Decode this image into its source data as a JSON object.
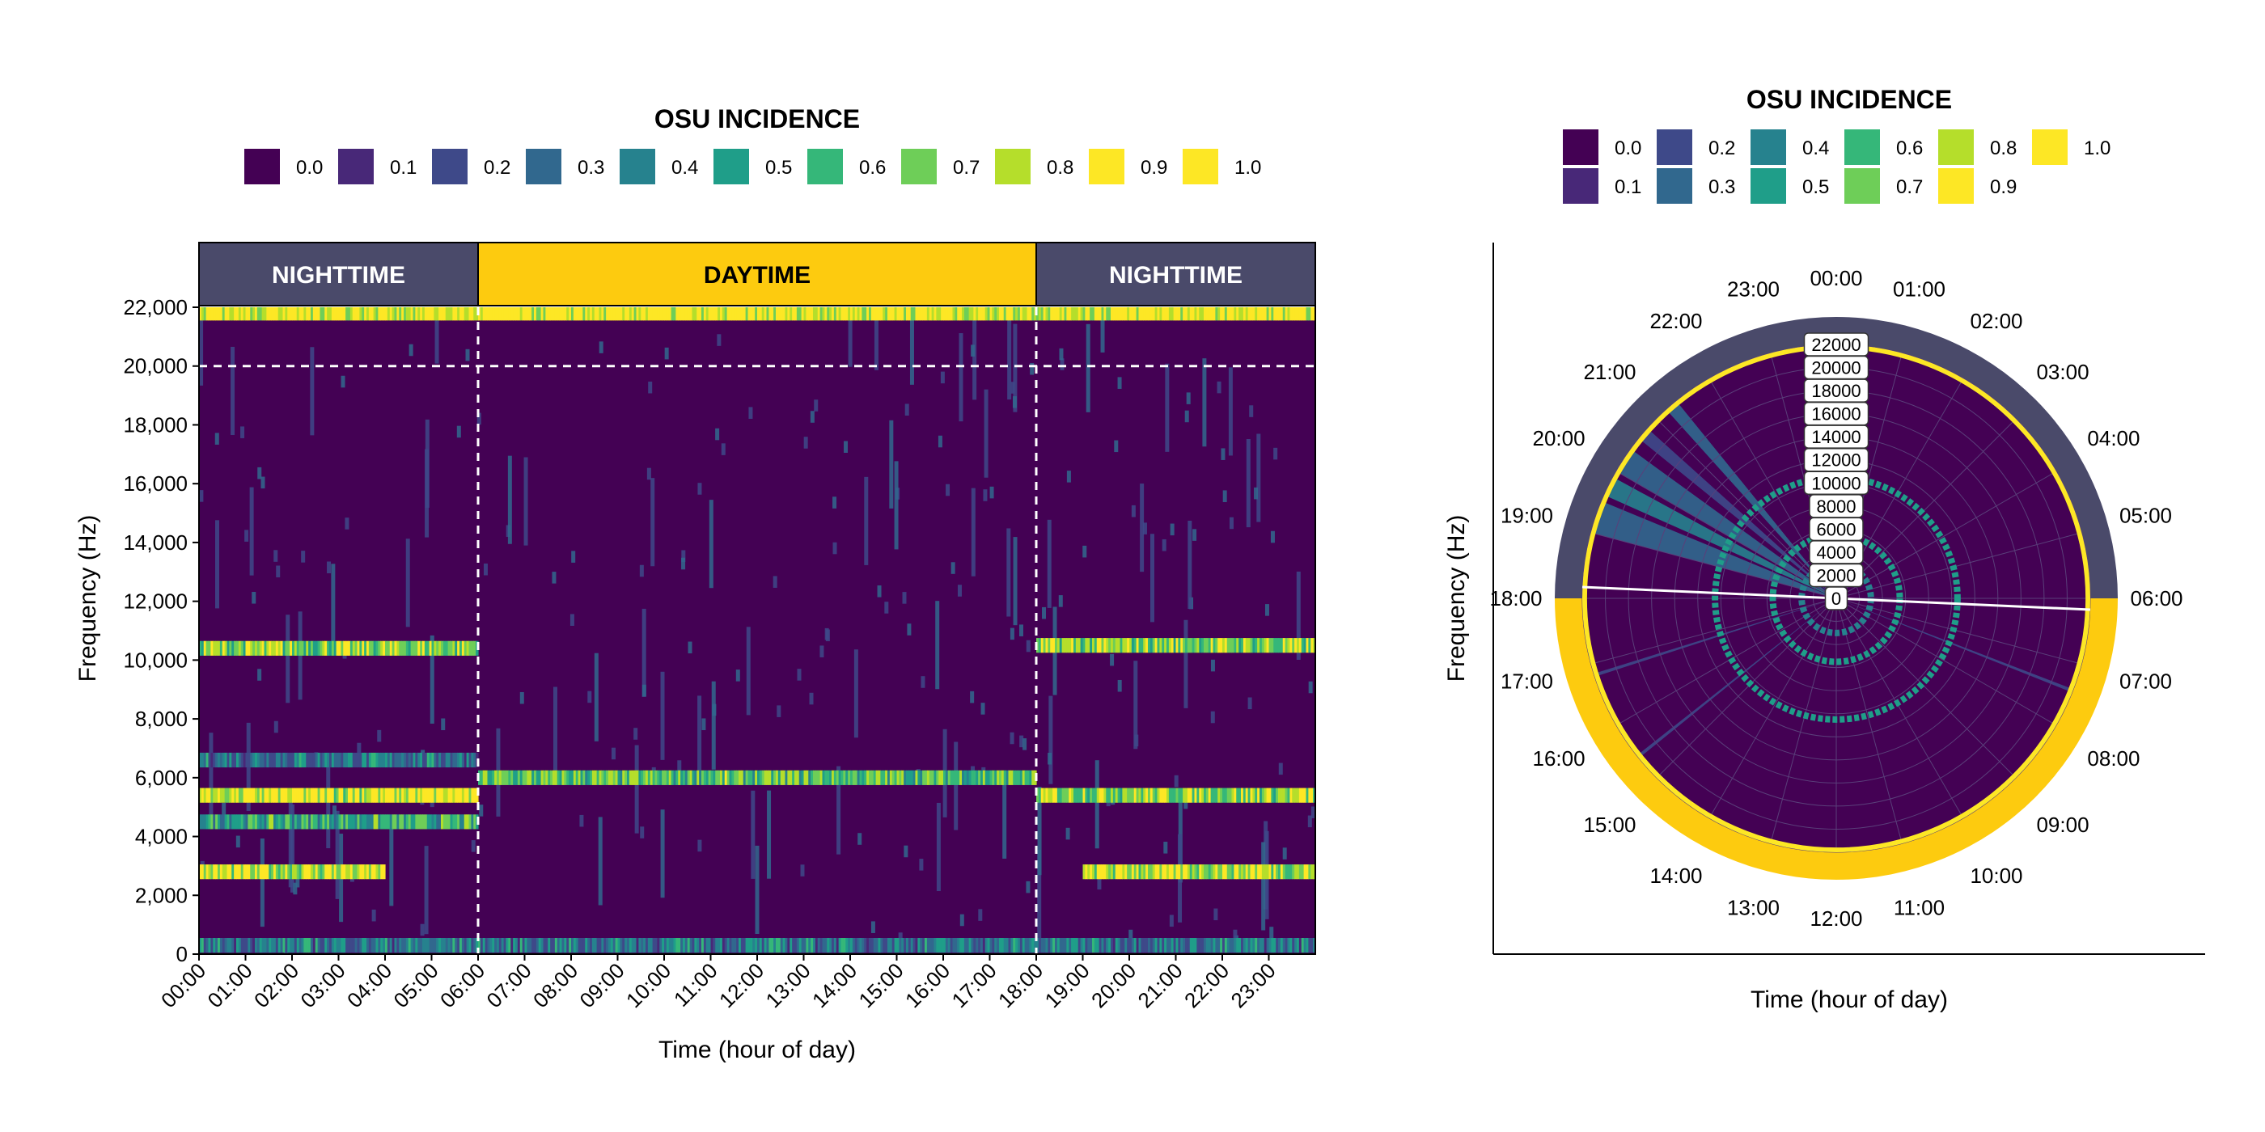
{
  "chart_data": [
    {
      "type": "heatmap",
      "legend": {
        "title": "OSU INCIDENCE",
        "labels": [
          "0.0",
          "0.1",
          "0.2",
          "0.3",
          "0.4",
          "0.5",
          "0.6",
          "0.7",
          "0.8",
          "0.9",
          "1.0"
        ],
        "colors": [
          "#440154",
          "#482878",
          "#3e4989",
          "#31688e",
          "#26828e",
          "#1f9e89",
          "#35b779",
          "#6ece58",
          "#b5de2b",
          "#fde725",
          "#fde725"
        ]
      },
      "xlabel": "Time (hour of day)",
      "ylabel": "Frequency (Hz)",
      "x_ticks": [
        "00:00",
        "01:00",
        "02:00",
        "03:00",
        "04:00",
        "05:00",
        "06:00",
        "07:00",
        "08:00",
        "09:00",
        "10:00",
        "11:00",
        "12:00",
        "13:00",
        "14:00",
        "15:00",
        "16:00",
        "17:00",
        "18:00",
        "19:00",
        "20:00",
        "21:00",
        "22:00",
        "23:00"
      ],
      "y_ticks": [
        "0",
        "2,000",
        "4,000",
        "6,000",
        "8,000",
        "10,000",
        "12,000",
        "14,000",
        "16,000",
        "18,000",
        "20,000",
        "22,000"
      ],
      "xlim": [
        0,
        24
      ],
      "ylim": [
        0,
        22000
      ],
      "period_bands": [
        {
          "label": "NIGHTTIME",
          "start": 0,
          "end": 6,
          "color": "#4a4a6a"
        },
        {
          "label": "DAYTIME",
          "start": 6,
          "end": 18,
          "color": "#fdcb0f"
        },
        {
          "label": "NIGHTTIME",
          "start": 18,
          "end": 24,
          "color": "#4a4a6a"
        }
      ],
      "reference_lines": {
        "vertical_hours": [
          6,
          18
        ],
        "horizontal_hz": 20000
      },
      "features": [
        {
          "from_hour": 0,
          "to_hour": 6,
          "freq_hz": 10400,
          "incidence": 0.8
        },
        {
          "from_hour": 0,
          "to_hour": 6,
          "freq_hz": 5400,
          "incidence": 0.95
        },
        {
          "from_hour": 0,
          "to_hour": 6,
          "freq_hz": 4500,
          "incidence": 0.6
        },
        {
          "from_hour": 0,
          "to_hour": 6,
          "freq_hz": 6600,
          "incidence": 0.4
        },
        {
          "from_hour": 0,
          "to_hour": 4,
          "freq_hz": 2800,
          "incidence": 0.9
        },
        {
          "from_hour": 6,
          "to_hour": 18,
          "freq_hz": 6000,
          "incidence": 0.7
        },
        {
          "from_hour": 18,
          "to_hour": 24,
          "freq_hz": 10500,
          "incidence": 0.8
        },
        {
          "from_hour": 18,
          "to_hour": 24,
          "freq_hz": 5400,
          "incidence": 0.85
        },
        {
          "from_hour": 19,
          "to_hour": 24,
          "freq_hz": 2800,
          "incidence": 0.9
        },
        {
          "from_hour": 0,
          "to_hour": 24,
          "freq_hz": 21800,
          "incidence": 1.0
        },
        {
          "from_hour": 0,
          "to_hour": 24,
          "freq_hz": 300,
          "incidence": 0.4
        }
      ]
    },
    {
      "type": "heatmap",
      "projection": "polar",
      "legend": {
        "title": "OSU INCIDENCE",
        "labels": [
          "0.0",
          "0.1",
          "0.2",
          "0.3",
          "0.4",
          "0.5",
          "0.6",
          "0.7",
          "0.8",
          "0.9",
          "1.0"
        ],
        "colors": [
          "#440154",
          "#482878",
          "#3e4989",
          "#31688e",
          "#26828e",
          "#1f9e89",
          "#35b779",
          "#6ece58",
          "#b5de2b",
          "#fde725",
          "#fde725"
        ]
      },
      "xlabel": "Time (hour of day)",
      "ylabel": "Frequency (Hz)",
      "angle_ticks": [
        "00:00",
        "01:00",
        "02:00",
        "03:00",
        "04:00",
        "05:00",
        "06:00",
        "07:00",
        "08:00",
        "09:00",
        "10:00",
        "11:00",
        "12:00",
        "13:00",
        "14:00",
        "15:00",
        "16:00",
        "17:00",
        "18:00",
        "19:00",
        "20:00",
        "21:00",
        "22:00",
        "23:00"
      ],
      "radial_ticks": [
        "0",
        "2000",
        "4000",
        "6000",
        "8000",
        "10000",
        "12000",
        "14000",
        "16000",
        "18000",
        "20000",
        "22000"
      ],
      "radial_lim": [
        0,
        22000
      ],
      "period_bands": [
        {
          "label": "NIGHTTIME",
          "start": 18,
          "end": 30,
          "color": "#4a4a6a"
        },
        {
          "label": "DAYTIME",
          "start": 6,
          "end": 18,
          "color": "#fdcb0f"
        }
      ],
      "rings": [
        {
          "freq_hz": 21800,
          "incidence": 1.0
        },
        {
          "freq_hz": 10500,
          "incidence": 0.6
        },
        {
          "freq_hz": 5500,
          "incidence": 0.5
        },
        {
          "freq_hz": 3000,
          "incidence": 0.4
        }
      ]
    }
  ]
}
